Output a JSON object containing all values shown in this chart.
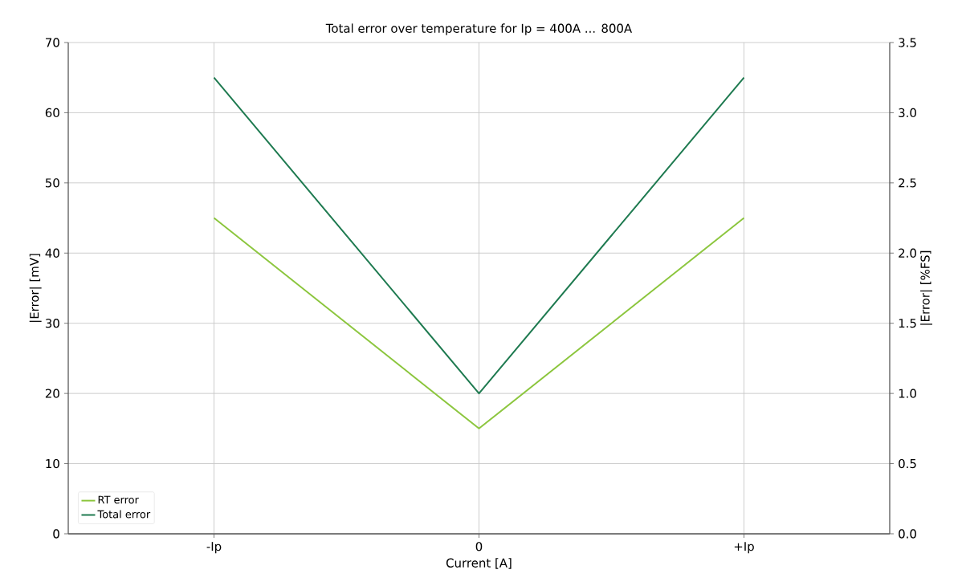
{
  "chart_data": {
    "type": "line",
    "title": "Total error over temperature for Ip = 400A ... 800A",
    "xlabel": "Current [A]",
    "ylabel": "|Error| [mV]",
    "y2label": "|Error| [%FS]",
    "categories": [
      "-Ip",
      "0",
      "+Ip"
    ],
    "series": [
      {
        "name": "RT error",
        "color": "#8cc63e",
        "values": [
          45,
          15,
          45
        ]
      },
      {
        "name": "Total error",
        "color": "#1e7a50",
        "values": [
          65,
          20,
          65
        ]
      }
    ],
    "ylim": [
      0,
      70
    ],
    "yticks": [
      0,
      10,
      20,
      30,
      40,
      50,
      60,
      70
    ],
    "y2lim": [
      0,
      3.5
    ],
    "y2ticks": [
      {
        "value": 0,
        "label": "0.0"
      },
      {
        "value": 0.5,
        "label": "0.5"
      },
      {
        "value": 1,
        "label": "1.0"
      },
      {
        "value": 1.5,
        "label": "1.5"
      },
      {
        "value": 2,
        "label": "2.0"
      },
      {
        "value": 2.5,
        "label": "2.5"
      },
      {
        "value": 3,
        "label": "3.0"
      },
      {
        "value": 3.5,
        "label": "3.5"
      }
    ],
    "grid": true,
    "legend": "bottom left"
  }
}
